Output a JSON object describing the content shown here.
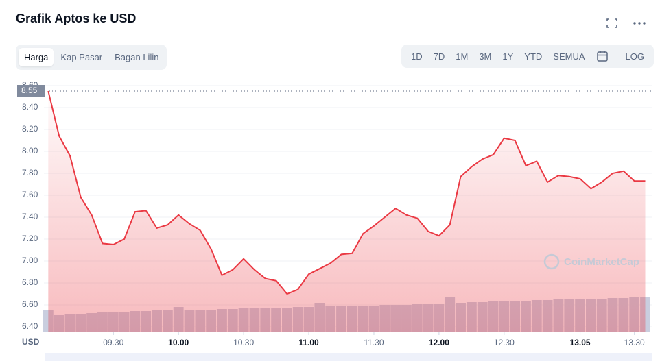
{
  "header": {
    "title": "Grafik Aptos ke USD"
  },
  "tabs": [
    "Harga",
    "Kap Pasar",
    "Bagan Lilin"
  ],
  "ranges": [
    "1D",
    "7D",
    "1M",
    "3M",
    "1Y",
    "YTD",
    "SEMUA"
  ],
  "log_label": "LOG",
  "chart_data": {
    "type": "line",
    "color": "#ea3943",
    "volume_color": "#c9cedf",
    "y_unit": "USD",
    "watermark": "CoinMarketCap",
    "current_price": 8.55,
    "x": [
      540,
      545,
      550,
      555,
      560,
      565,
      570,
      575,
      580,
      585,
      590,
      595,
      600,
      605,
      610,
      615,
      620,
      625,
      630,
      635,
      640,
      645,
      650,
      655,
      660,
      665,
      670,
      675,
      680,
      685,
      690,
      695,
      700,
      705,
      710,
      715,
      720,
      725,
      730,
      735,
      740,
      745,
      750,
      755,
      760,
      765,
      770,
      775,
      780,
      785,
      790,
      795,
      800,
      805,
      810,
      815
    ],
    "values": [
      8.55,
      8.14,
      7.96,
      7.58,
      7.42,
      7.16,
      7.15,
      7.2,
      7.45,
      7.46,
      7.3,
      7.33,
      7.42,
      7.34,
      7.28,
      7.11,
      6.87,
      6.92,
      7.02,
      6.92,
      6.84,
      6.82,
      6.7,
      6.74,
      6.88,
      6.93,
      6.98,
      7.06,
      7.07,
      7.25,
      7.32,
      7.4,
      7.48,
      7.42,
      7.39,
      7.27,
      7.23,
      7.33,
      7.77,
      7.86,
      7.93,
      7.97,
      8.12,
      8.1,
      7.87,
      7.91,
      7.72,
      7.78,
      7.77,
      7.75,
      7.66,
      7.72,
      7.8,
      7.82,
      7.73,
      7.73
    ],
    "volume": [
      32,
      25,
      26,
      27,
      28,
      29,
      30,
      30,
      31,
      31,
      32,
      32,
      37,
      33,
      33,
      33,
      34,
      34,
      35,
      35,
      35,
      36,
      36,
      37,
      37,
      43,
      38,
      38,
      38,
      39,
      39,
      40,
      40,
      40,
      41,
      41,
      41,
      51,
      43,
      44,
      44,
      45,
      45,
      46,
      46,
      47,
      47,
      48,
      48,
      49,
      49,
      49,
      50,
      50,
      51,
      51
    ],
    "ylim": [
      6.35,
      8.65
    ],
    "yticks": [
      {
        "value": 6.4,
        "label": "6.40"
      },
      {
        "value": 6.6,
        "label": "6.60"
      },
      {
        "value": 6.8,
        "label": "6.80"
      },
      {
        "value": 7,
        "label": "7.00"
      },
      {
        "value": 7.2,
        "label": "7.20"
      },
      {
        "value": 7.4,
        "label": "7.40"
      },
      {
        "value": 7.6,
        "label": "7.60"
      },
      {
        "value": 7.8,
        "label": "7.80"
      },
      {
        "value": 8,
        "label": "8.00"
      },
      {
        "value": 8.2,
        "label": "8.20"
      },
      {
        "value": 8.4,
        "label": "8.40"
      },
      {
        "value": 8.6,
        "label": "8.60"
      }
    ],
    "xlim": [
      538,
      818
    ],
    "xticks": [
      {
        "value": 570,
        "label": "09.30"
      },
      {
        "value": 600,
        "label": "10.00"
      },
      {
        "value": 630,
        "label": "10.30"
      },
      {
        "value": 660,
        "label": "11.00"
      },
      {
        "value": 690,
        "label": "11.30"
      },
      {
        "value": 720,
        "label": "12.00"
      },
      {
        "value": 750,
        "label": "12.30"
      },
      {
        "value": 785,
        "label": "13.05"
      },
      {
        "value": 810,
        "label": "13.30"
      }
    ],
    "grid": true
  }
}
